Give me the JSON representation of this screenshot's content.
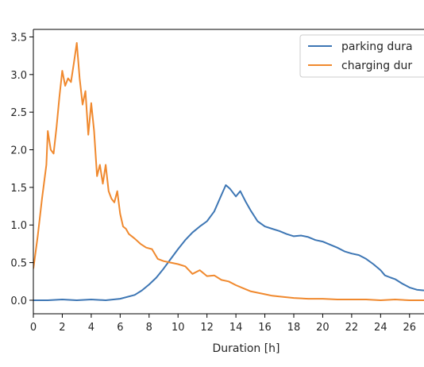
{
  "chart_data": {
    "type": "line",
    "xlabel": "Duration [h]",
    "ylabel": "",
    "xlim": [
      0,
      27
    ],
    "ylim": [
      -0.18,
      3.6
    ],
    "xticks": [
      0,
      2,
      4,
      6,
      8,
      10,
      12,
      14,
      16,
      18,
      20,
      22,
      24,
      26
    ],
    "yticks": [
      0.0,
      0.5,
      1.0,
      1.5,
      2.0,
      2.5,
      3.0,
      3.5
    ],
    "xtick_labels": [
      "0",
      "2",
      "4",
      "6",
      "8",
      "10",
      "12",
      "14",
      "16",
      "18",
      "20",
      "22",
      "24",
      "26"
    ],
    "ytick_labels": [
      "0.0",
      "0.5",
      "1.0",
      "1.5",
      "2.0",
      "2.5",
      "3.0",
      "3.5"
    ],
    "grid": false,
    "legend_position": "top-right",
    "series": [
      {
        "name": "parking dura",
        "color": "#3d76b4",
        "x": [
          0,
          1,
          2,
          3,
          4,
          5,
          6,
          7,
          7.5,
          8,
          8.5,
          9,
          9.5,
          10,
          10.5,
          11,
          11.5,
          12,
          12.5,
          13,
          13.3,
          13.6,
          14,
          14.3,
          14.7,
          15,
          15.5,
          16,
          16.5,
          17,
          17.5,
          18,
          18.5,
          19,
          19.5,
          20,
          20.5,
          21,
          21.5,
          22,
          22.5,
          23,
          23.5,
          24,
          24.3,
          24.7,
          25,
          25.5,
          26,
          26.5,
          27
        ],
        "y": [
          0.0,
          0.0,
          0.01,
          0.0,
          0.01,
          0.0,
          0.02,
          0.07,
          0.13,
          0.21,
          0.3,
          0.42,
          0.55,
          0.68,
          0.8,
          0.9,
          0.98,
          1.05,
          1.18,
          1.4,
          1.53,
          1.48,
          1.38,
          1.45,
          1.3,
          1.2,
          1.05,
          0.98,
          0.95,
          0.92,
          0.88,
          0.85,
          0.86,
          0.84,
          0.8,
          0.78,
          0.74,
          0.7,
          0.65,
          0.62,
          0.6,
          0.55,
          0.48,
          0.4,
          0.33,
          0.3,
          0.28,
          0.22,
          0.17,
          0.14,
          0.13
        ]
      },
      {
        "name": "charging dur",
        "color": "#f0892e",
        "x": [
          0,
          0.3,
          0.6,
          0.9,
          1.0,
          1.2,
          1.4,
          1.6,
          1.8,
          2.0,
          2.2,
          2.4,
          2.6,
          2.8,
          3.0,
          3.2,
          3.4,
          3.6,
          3.8,
          4.0,
          4.2,
          4.4,
          4.6,
          4.8,
          5.0,
          5.2,
          5.4,
          5.6,
          5.8,
          6.0,
          6.2,
          6.4,
          6.6,
          7.0,
          7.4,
          7.8,
          8.2,
          8.6,
          9.0,
          9.5,
          10,
          10.5,
          11,
          11.5,
          12,
          12.5,
          13,
          13.5,
          14,
          14.5,
          15,
          15.5,
          16,
          16.5,
          17,
          18,
          19,
          20,
          21,
          22,
          23,
          24,
          25,
          26,
          27
        ],
        "y": [
          0.42,
          0.85,
          1.35,
          1.8,
          2.25,
          2.0,
          1.95,
          2.3,
          2.7,
          3.05,
          2.85,
          2.95,
          2.9,
          3.15,
          3.42,
          2.95,
          2.6,
          2.78,
          2.2,
          2.62,
          2.25,
          1.65,
          1.8,
          1.55,
          1.8,
          1.45,
          1.35,
          1.3,
          1.45,
          1.15,
          0.98,
          0.95,
          0.88,
          0.82,
          0.75,
          0.7,
          0.68,
          0.55,
          0.52,
          0.5,
          0.48,
          0.45,
          0.35,
          0.4,
          0.32,
          0.33,
          0.27,
          0.25,
          0.2,
          0.16,
          0.12,
          0.1,
          0.08,
          0.06,
          0.05,
          0.03,
          0.02,
          0.02,
          0.01,
          0.01,
          0.01,
          0.0,
          0.01,
          0.0,
          0.0
        ]
      }
    ]
  }
}
